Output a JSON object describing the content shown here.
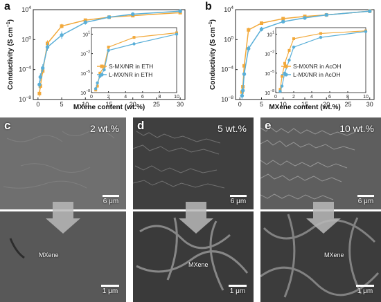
{
  "chart_data": [
    {
      "type": "line",
      "panel": "a",
      "xlabel": "MXene content (wt.%)",
      "ylabel": "Conductivity (S cm",
      "ylabel_sup": "−1",
      "ylabel_close": ")",
      "xlim": [
        -1,
        31
      ],
      "xticks": [
        "0",
        "5",
        "10",
        "15",
        "20",
        "25",
        "30"
      ],
      "yscale": "log",
      "ylim_exp": [
        -8,
        4
      ],
      "ytick_exps": [
        -8,
        -4,
        0,
        4
      ],
      "series": [
        {
          "name": "S-MX/NR in ETH",
          "color": "#f2a93b",
          "marker": "square",
          "x": [
            0.3,
            0.5,
            1,
            2,
            5,
            10,
            15,
            20,
            30
          ],
          "y_exp": [
            -7.2,
            -6.2,
            -4.2,
            -0.5,
            1.8,
            2.6,
            3.0,
            3.2,
            3.6
          ],
          "err_exp": [
            0.4,
            0.4,
            0.4,
            0.4,
            0.3,
            0.2,
            0.2,
            0.2,
            0.2
          ]
        },
        {
          "name": "L-MX/NR in ETH",
          "color": "#5aafd8",
          "marker": "circle",
          "x": [
            0.3,
            0.5,
            1,
            2,
            5,
            10,
            15,
            20,
            30
          ],
          "y_exp": [
            -6.0,
            -5.0,
            -3.8,
            -1.0,
            0.6,
            2.3,
            3.0,
            3.4,
            3.8
          ],
          "err_exp": [
            0.5,
            0.5,
            0.5,
            0.5,
            0.5,
            0.3,
            0.2,
            0.2,
            0.2
          ]
        }
      ],
      "inset": {
        "xlim": [
          0,
          10
        ],
        "xticks": [
          "0",
          "2",
          "4",
          "6",
          "8",
          "10"
        ],
        "ytick_labels": [
          [
            "10",
            "1"
          ],
          [
            "10",
            "-2"
          ],
          [
            "10",
            "-5"
          ],
          [
            "10",
            "-8"
          ]
        ],
        "ytick_exps": [
          1,
          -2,
          -5,
          -8
        ],
        "ylim_exp": [
          -8,
          2
        ],
        "series": [
          {
            "x": [
              0.5,
              0.7,
              1,
              1.5,
              2,
              5,
              10
            ],
            "y_exp": [
              -7.6,
              -7.0,
              -5.0,
              -4.0,
              -1.0,
              0.5,
              1.2
            ]
          },
          {
            "x": [
              0.5,
              0.7,
              1,
              1.5,
              2,
              5,
              10
            ],
            "y_exp": [
              -7.4,
              -6.5,
              -5.5,
              -4.5,
              -1.5,
              -0.5,
              1.0
            ]
          }
        ]
      }
    },
    {
      "type": "line",
      "panel": "b",
      "xlabel": "MXene content (wt.%)",
      "ylabel": "Conductivity (S cm",
      "ylabel_sup": "−1",
      "ylabel_close": ")",
      "xlim": [
        -1,
        31
      ],
      "xticks": [
        "0",
        "5",
        "10",
        "15",
        "20",
        "25",
        "30"
      ],
      "yscale": "log",
      "ylim_exp": [
        -8,
        4
      ],
      "ytick_exps": [
        -8,
        -4,
        0,
        4
      ],
      "series": [
        {
          "name": "S-MX/NR in AcOH",
          "color": "#f2a93b",
          "marker": "square",
          "x": [
            0.5,
            0.7,
            1,
            2,
            5,
            10,
            15,
            20,
            30
          ],
          "y_exp": [
            -7.0,
            -6.3,
            -3.5,
            1.3,
            2.2,
            2.8,
            3.1,
            3.3,
            3.8
          ],
          "err_exp": [
            0.5,
            0.4,
            0.4,
            0.3,
            0.2,
            0.2,
            0.2,
            0.2,
            0.2
          ]
        },
        {
          "name": "L-MX/NR in AcOH",
          "color": "#5aafd8",
          "marker": "circle",
          "x": [
            0.5,
            0.7,
            1,
            2,
            5,
            10,
            15,
            20,
            30
          ],
          "y_exp": [
            -7.5,
            -6.8,
            -4.6,
            -1.2,
            1.4,
            2.4,
            2.9,
            3.3,
            3.8
          ],
          "err_exp": [
            0.5,
            0.5,
            0.5,
            0.4,
            0.3,
            0.2,
            0.2,
            0.2,
            0.2
          ]
        }
      ],
      "inset": {
        "xlim": [
          0,
          10
        ],
        "xticks": [
          "0",
          "2",
          "4",
          "6",
          "8",
          "10"
        ],
        "ytick_labels": [
          [
            "10",
            "1"
          ],
          [
            "10",
            "-2"
          ],
          [
            "10",
            "-5"
          ],
          [
            "10",
            "-8"
          ]
        ],
        "ytick_exps": [
          1,
          -2,
          -5,
          -8
        ],
        "ylim_exp": [
          -8,
          2
        ],
        "series": [
          {
            "x": [
              0.5,
              0.7,
              1,
              1.5,
              2,
              5,
              10
            ],
            "y_exp": [
              -7.5,
              -5.5,
              -3.5,
              -1.5,
              0.3,
              1.1,
              1.5
            ]
          },
          {
            "x": [
              0.5,
              0.7,
              1,
              1.5,
              2,
              5,
              10
            ],
            "y_exp": [
              -7.8,
              -7.0,
              -5.0,
              -3.0,
              -1.0,
              0.5,
              1.4
            ]
          }
        ]
      }
    }
  ],
  "micrographs": [
    {
      "letter": "c",
      "content": "2 wt.%",
      "scale_top": "6 μm",
      "scale_bottom": "1 μm",
      "label": "MXene",
      "tone": "#6e6e6e"
    },
    {
      "letter": "d",
      "content": "5 wt.%",
      "scale_top": "6 μm",
      "scale_bottom": "1 μm",
      "label": "MXene",
      "tone": "#4a4a4a"
    },
    {
      "letter": "e",
      "content": "10 wt.%",
      "scale_top": "6 μm",
      "scale_bottom": "1 μm",
      "label": "MXene",
      "tone": "#5a5a5a"
    }
  ]
}
